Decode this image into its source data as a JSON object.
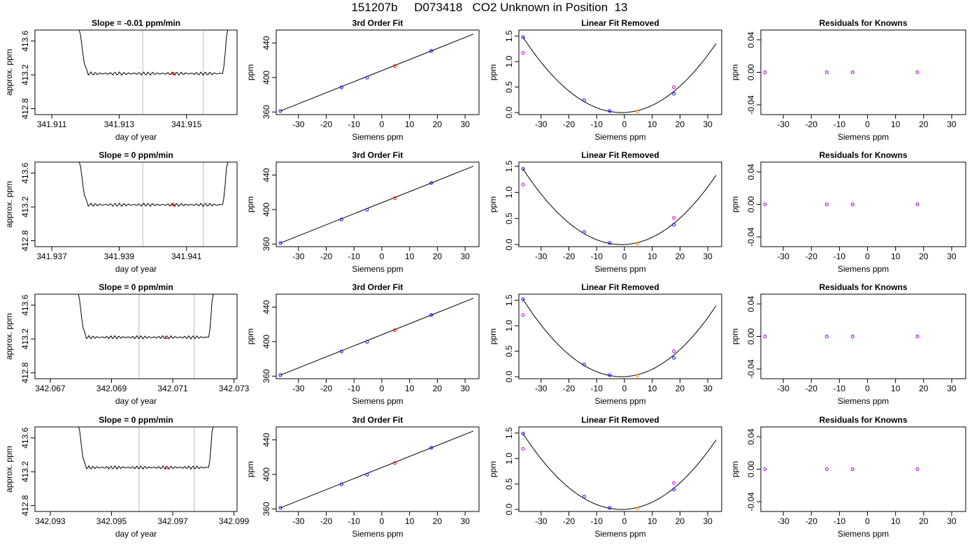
{
  "header": {
    "title": "151207b     D073418   CO2 Unknown in Position  13"
  },
  "colors": {
    "known": "#0000ff",
    "unknown": "#ff0000",
    "unknown_resid": "#ff8c00",
    "raw": "#cc00cc",
    "resid": "#9900cc",
    "window": "#bbbbbb",
    "curve": "#000000"
  },
  "chart_data": [
    {
      "type": "line",
      "title": "Slope =  -0.01  ppm/min",
      "xlabel": "day of year",
      "ylabel": "approx. ppm",
      "xlim": [
        341.9105,
        341.9165
      ],
      "ylim": [
        412.73,
        413.73
      ],
      "xticks": [
        "341.911",
        "341.913",
        "341.915"
      ],
      "xtick_values": [
        341.911,
        341.913,
        341.915
      ],
      "yticks": [
        "412.8",
        "413.2",
        "413.6"
      ],
      "ytick_values": [
        412.8,
        413.2,
        413.6
      ],
      "window": [
        341.9137,
        341.9155
      ],
      "point": [
        341.9146,
        413.215
      ],
      "start": 341.9117,
      "end": 341.9163
    },
    {
      "type": "line",
      "title": "3rd Order Fit",
      "xlabel": "Siemens ppm",
      "ylabel": "ppm",
      "xlim": [
        -38,
        35
      ],
      "ylim": [
        357,
        455
      ],
      "xticks": [
        "-30",
        "-20",
        "-10",
        "0",
        "10",
        "20",
        "30"
      ],
      "xtick_values": [
        -30,
        -20,
        -10,
        0,
        10,
        20,
        30
      ],
      "yticks": [
        "360",
        "400",
        "440"
      ],
      "ytick_values": [
        360,
        400,
        440
      ],
      "knowns": [
        [
          -36.5,
          361.2
        ],
        [
          -14.5,
          388.5
        ],
        [
          -5.3,
          399.7
        ],
        [
          17.8,
          430.8
        ]
      ],
      "unknown": [
        4.7,
        413.2
      ]
    },
    {
      "type": "scatter",
      "title": "Linear Fit Removed",
      "xlabel": "Siemens ppm",
      "ylabel": "ppm",
      "xlim": [
        -38,
        35
      ],
      "ylim": [
        -0.04,
        1.62
      ],
      "xticks": [
        "-30",
        "-20",
        "-10",
        "0",
        "10",
        "20",
        "30"
      ],
      "xtick_values": [
        -30,
        -20,
        -10,
        0,
        10,
        20,
        30
      ],
      "yticks": [
        "0.0",
        "0.5",
        "1.0",
        "1.5"
      ],
      "ytick_values": [
        0,
        0.5,
        1.0,
        1.5
      ],
      "knowns": [
        [
          -36.5,
          1.48
        ],
        [
          -14.5,
          0.24
        ],
        [
          -5.3,
          0.03
        ],
        [
          17.8,
          0.37
        ]
      ],
      "raw": [
        [
          -36.5,
          1.17
        ],
        [
          17.8,
          0.5
        ]
      ],
      "unknown": [
        4.7,
        0.02
      ]
    },
    {
      "type": "scatter",
      "title": "Residuals for Knowns",
      "xlabel": "Siemens ppm",
      "ylabel": "ppm",
      "xlim": [
        -38,
        35
      ],
      "ylim": [
        -0.052,
        0.052
      ],
      "xticks": [
        "-30",
        "-20",
        "-10",
        "0",
        "10",
        "20",
        "30"
      ],
      "xtick_values": [
        -30,
        -20,
        -10,
        0,
        10,
        20,
        30
      ],
      "yticks": [
        "-0.04",
        "0.00",
        "0.04"
      ],
      "ytick_values": [
        -0.04,
        0,
        0.04
      ],
      "knowns": [
        [
          -36.5,
          0
        ],
        [
          -14.5,
          0
        ],
        [
          -5.3,
          0
        ],
        [
          17.8,
          0
        ]
      ]
    },
    {
      "type": "line",
      "title": "Slope =  0  ppm/min",
      "xlabel": "day of year",
      "ylabel": "approx. ppm",
      "xlim": [
        341.9365,
        341.9425
      ],
      "ylim": [
        412.73,
        413.73
      ],
      "xticks": [
        "341.937",
        "341.939",
        "341.941"
      ],
      "xtick_values": [
        341.937,
        341.939,
        341.941
      ],
      "yticks": [
        "412.8",
        "413.2",
        "413.6"
      ],
      "ytick_values": [
        412.8,
        413.2,
        413.6
      ],
      "window": [
        341.9397,
        341.9415
      ],
      "point": [
        341.9406,
        413.225
      ],
      "start": 341.9377,
      "end": 341.9423
    },
    {
      "type": "line",
      "title": "3rd Order Fit",
      "xlabel": "Siemens ppm",
      "ylabel": "ppm",
      "xlim": [
        -38,
        35
      ],
      "ylim": [
        357,
        455
      ],
      "xticks": [
        "-30",
        "-20",
        "-10",
        "0",
        "10",
        "20",
        "30"
      ],
      "xtick_values": [
        -30,
        -20,
        -10,
        0,
        10,
        20,
        30
      ],
      "yticks": [
        "360",
        "400",
        "440"
      ],
      "ytick_values": [
        360,
        400,
        440
      ],
      "knowns": [
        [
          -36.5,
          361.2
        ],
        [
          -14.5,
          388.5
        ],
        [
          -5.3,
          399.7
        ],
        [
          17.8,
          430.8
        ]
      ],
      "unknown": [
        4.7,
        413.2
      ]
    },
    {
      "type": "scatter",
      "title": "Linear Fit Removed",
      "xlabel": "Siemens ppm",
      "ylabel": "ppm",
      "xlim": [
        -38,
        35
      ],
      "ylim": [
        -0.04,
        1.58
      ],
      "xticks": [
        "-30",
        "-20",
        "-10",
        "0",
        "10",
        "20",
        "30"
      ],
      "xtick_values": [
        -30,
        -20,
        -10,
        0,
        10,
        20,
        30
      ],
      "yticks": [
        "0.0",
        "0.5",
        "1.0",
        "1.5"
      ],
      "ytick_values": [
        0,
        0.5,
        1.0,
        1.5
      ],
      "knowns": [
        [
          -36.5,
          1.45
        ],
        [
          -14.5,
          0.24
        ],
        [
          -5.3,
          0.03
        ],
        [
          17.8,
          0.38
        ]
      ],
      "raw": [
        [
          -36.5,
          1.15
        ],
        [
          17.8,
          0.51
        ]
      ],
      "unknown": [
        4.7,
        0.02
      ]
    },
    {
      "type": "scatter",
      "title": "Residuals for Knowns",
      "xlabel": "Siemens ppm",
      "ylabel": "ppm",
      "xlim": [
        -38,
        35
      ],
      "ylim": [
        -0.052,
        0.052
      ],
      "xticks": [
        "-30",
        "-20",
        "-10",
        "0",
        "10",
        "20",
        "30"
      ],
      "xtick_values": [
        -30,
        -20,
        -10,
        0,
        10,
        20,
        30
      ],
      "yticks": [
        "-0.04",
        "0.00",
        "0.04"
      ],
      "ytick_values": [
        -0.04,
        0,
        0.04
      ],
      "knowns": [
        [
          -36.5,
          0
        ],
        [
          -14.5,
          0
        ],
        [
          -5.3,
          0
        ],
        [
          17.8,
          0
        ]
      ]
    },
    {
      "type": "line",
      "title": "Slope =  0  ppm/min",
      "xlabel": "day of year",
      "ylabel": "approx. ppm",
      "xlim": [
        342.0665,
        342.0731
      ],
      "ylim": [
        412.73,
        413.73
      ],
      "xticks": [
        "342.067",
        "342.069",
        "342.071",
        "342.073"
      ],
      "xtick_values": [
        342.067,
        342.069,
        342.071,
        342.073
      ],
      "yticks": [
        "412.8",
        "413.2",
        "413.6"
      ],
      "ytick_values": [
        412.8,
        413.2,
        413.6
      ],
      "window": [
        342.0699,
        342.0717
      ],
      "point": [
        342.0708,
        413.22
      ],
      "start": 342.0678,
      "end": 342.0724
    },
    {
      "type": "line",
      "title": "3rd Order Fit",
      "xlabel": "Siemens ppm",
      "ylabel": "ppm",
      "xlim": [
        -38,
        35
      ],
      "ylim": [
        357,
        455
      ],
      "xticks": [
        "-30",
        "-20",
        "-10",
        "0",
        "10",
        "20",
        "30"
      ],
      "xtick_values": [
        -30,
        -20,
        -10,
        0,
        10,
        20,
        30
      ],
      "yticks": [
        "360",
        "400",
        "440"
      ],
      "ytick_values": [
        360,
        400,
        440
      ],
      "knowns": [
        [
          -36.5,
          361.2
        ],
        [
          -14.5,
          388.5
        ],
        [
          -5.3,
          399.7
        ],
        [
          17.8,
          430.8
        ]
      ],
      "unknown": [
        4.7,
        413.2
      ]
    },
    {
      "type": "scatter",
      "title": "Linear Fit Removed",
      "xlabel": "Siemens ppm",
      "ylabel": "ppm",
      "xlim": [
        -38,
        35
      ],
      "ylim": [
        -0.04,
        1.62
      ],
      "xticks": [
        "-30",
        "-20",
        "-10",
        "0",
        "10",
        "20",
        "30"
      ],
      "xtick_values": [
        -30,
        -20,
        -10,
        0,
        10,
        20,
        30
      ],
      "yticks": [
        "0.0",
        "0.5",
        "1.0",
        "1.5"
      ],
      "ytick_values": [
        0,
        0.5,
        1.0,
        1.5
      ],
      "knowns": [
        [
          -36.5,
          1.52
        ],
        [
          -14.5,
          0.24
        ],
        [
          -5.3,
          0.03
        ],
        [
          17.8,
          0.37
        ]
      ],
      "raw": [
        [
          -36.5,
          1.21
        ],
        [
          17.8,
          0.5
        ]
      ],
      "unknown": [
        4.7,
        0.02
      ]
    },
    {
      "type": "scatter",
      "title": "Residuals for Knowns",
      "xlabel": "Siemens ppm",
      "ylabel": "ppm",
      "xlim": [
        -38,
        35
      ],
      "ylim": [
        -0.052,
        0.052
      ],
      "xticks": [
        "-30",
        "-20",
        "-10",
        "0",
        "10",
        "20",
        "30"
      ],
      "xtick_values": [
        -30,
        -20,
        -10,
        0,
        10,
        20,
        30
      ],
      "yticks": [
        "-0.04",
        "0.00",
        "0.04"
      ],
      "ytick_values": [
        -0.04,
        0,
        0.04
      ],
      "knowns": [
        [
          -36.5,
          0
        ],
        [
          -14.5,
          0
        ],
        [
          -5.3,
          0
        ],
        [
          17.8,
          0
        ]
      ]
    },
    {
      "type": "line",
      "title": "Slope =  0  ppm/min",
      "xlabel": "day of year",
      "ylabel": "approx. ppm",
      "xlim": [
        342.0925,
        342.0991
      ],
      "ylim": [
        412.73,
        413.73
      ],
      "xticks": [
        "342.093",
        "342.095",
        "342.097",
        "342.099"
      ],
      "xtick_values": [
        342.093,
        342.095,
        342.097,
        342.099
      ],
      "yticks": [
        "412.8",
        "413.2",
        "413.6"
      ],
      "ytick_values": [
        412.8,
        413.2,
        413.6
      ],
      "window": [
        342.0959,
        342.0977
      ],
      "point": [
        342.0968,
        413.25
      ],
      "start": 342.0938,
      "end": 342.0984
    },
    {
      "type": "line",
      "title": "3rd Order Fit",
      "xlabel": "Siemens ppm",
      "ylabel": "ppm",
      "xlim": [
        -38,
        35
      ],
      "ylim": [
        357,
        455
      ],
      "xticks": [
        "-30",
        "-20",
        "-10",
        "0",
        "10",
        "20",
        "30"
      ],
      "xtick_values": [
        -30,
        -20,
        -10,
        0,
        10,
        20,
        30
      ],
      "yticks": [
        "360",
        "400",
        "440"
      ],
      "ytick_values": [
        360,
        400,
        440
      ],
      "knowns": [
        [
          -36.5,
          361.2
        ],
        [
          -14.5,
          388.5
        ],
        [
          -5.3,
          399.7
        ],
        [
          17.8,
          430.8
        ]
      ],
      "unknown": [
        4.7,
        413.2
      ]
    },
    {
      "type": "scatter",
      "title": "Linear Fit Removed",
      "xlabel": "Siemens ppm",
      "ylabel": "ppm",
      "xlim": [
        -38,
        35
      ],
      "ylim": [
        -0.04,
        1.62
      ],
      "xticks": [
        "-30",
        "-20",
        "-10",
        "0",
        "10",
        "20",
        "30"
      ],
      "xtick_values": [
        -30,
        -20,
        -10,
        0,
        10,
        20,
        30
      ],
      "yticks": [
        "0.0",
        "0.5",
        "1.0",
        "1.5"
      ],
      "ytick_values": [
        0,
        0.5,
        1.0,
        1.5
      ],
      "knowns": [
        [
          -36.5,
          1.49
        ],
        [
          -14.5,
          0.25
        ],
        [
          -5.3,
          0.03
        ],
        [
          17.8,
          0.39
        ]
      ],
      "raw": [
        [
          -36.5,
          1.19
        ],
        [
          17.8,
          0.52
        ]
      ],
      "unknown": [
        4.7,
        0.02
      ]
    },
    {
      "type": "scatter",
      "title": "Residuals for Knowns",
      "xlabel": "Siemens ppm",
      "ylabel": "ppm",
      "xlim": [
        -38,
        35
      ],
      "ylim": [
        -0.052,
        0.052
      ],
      "xticks": [
        "-30",
        "-20",
        "-10",
        "0",
        "10",
        "20",
        "30"
      ],
      "xtick_values": [
        -30,
        -20,
        -10,
        0,
        10,
        20,
        30
      ],
      "yticks": [
        "-0.04",
        "0.00",
        "0.04"
      ],
      "ytick_values": [
        -0.04,
        0,
        0.04
      ],
      "knowns": [
        [
          -36.5,
          0
        ],
        [
          -14.5,
          0
        ],
        [
          -5.3,
          0
        ],
        [
          17.8,
          0
        ]
      ]
    }
  ]
}
